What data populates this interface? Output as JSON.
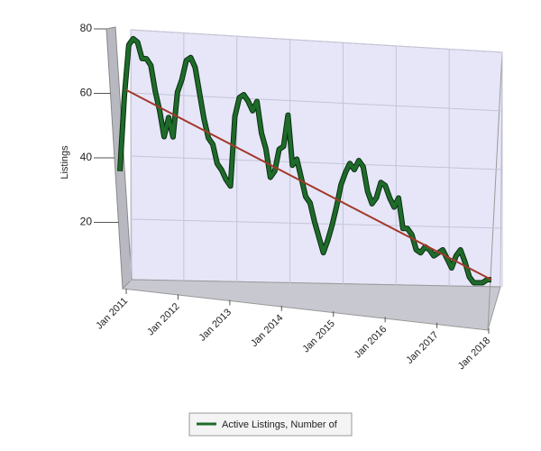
{
  "chart_data": {
    "type": "line",
    "y_label": "Listings",
    "xticks": [
      "Jan 2011",
      "Jan 2012",
      "Jan 2013",
      "Jan 2014",
      "Jan 2015",
      "Jan 2016",
      "Jan 2017",
      "Jan 2018"
    ],
    "ylim": [
      0,
      80
    ],
    "yticks": [
      20,
      40,
      60,
      80
    ],
    "grid": true,
    "legend": "bottom",
    "series": [
      {
        "name": "Active Listings, Number of",
        "color": "#1e6b2a",
        "values": [
          37,
          60,
          76,
          78,
          77,
          72,
          72,
          70,
          62,
          56,
          48,
          54,
          48,
          62,
          66,
          72,
          73,
          70,
          62,
          54,
          48,
          46,
          40,
          38,
          35,
          33,
          55,
          61,
          62,
          60,
          57,
          60,
          50,
          45,
          36,
          38,
          45,
          46,
          56,
          40,
          42,
          36,
          30,
          28,
          22,
          17,
          12,
          16,
          21,
          27,
          34,
          38,
          41,
          39,
          42,
          40,
          32,
          28,
          30,
          35,
          34,
          30,
          27,
          30,
          20,
          20,
          18,
          13,
          12,
          14,
          13,
          11,
          12,
          13,
          10,
          7,
          11,
          13,
          9,
          4,
          2,
          2,
          2,
          3,
          3
        ]
      }
    ],
    "trend": {
      "color": "#a3382a",
      "values": [
        62,
        3
      ]
    }
  }
}
